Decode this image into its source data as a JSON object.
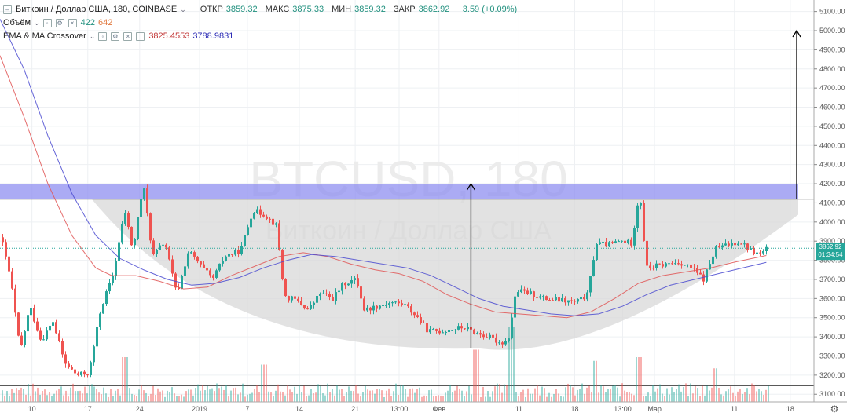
{
  "symbol": {
    "title": "Биткоин / Доллар США, 180, COINBASE",
    "watermark_ticker": "BTCUSD, 180",
    "watermark_name": "Биткоин / Доллар США"
  },
  "ohlc": {
    "open_label": "ОТКР",
    "open": "3859.32",
    "high_label": "МАКС",
    "high": "3875.33",
    "low_label": "МИН",
    "low": "3859.32",
    "close_label": "ЗАКР",
    "close": "3862.92",
    "change": "+3.59 (+0.09%)"
  },
  "volume_legend": {
    "label": "Объём",
    "value_up": "422",
    "value_down": "642"
  },
  "ema_legend": {
    "label": "EMA & MA Crossover",
    "ema_value": "3825.4553",
    "ma_value": "3788.9831"
  },
  "price_badge": {
    "price": "3862.92",
    "countdown": "01:34:54"
  },
  "colors": {
    "up": "#26a69a",
    "down": "#ef5350",
    "ema": "#e05555",
    "ma": "#4a4ad0",
    "resistance_band": "#8f8ff0",
    "cup_fill": "#d8d8d8",
    "badge": "#26a69a",
    "grid": "#eef0f3"
  },
  "chart_data": {
    "type": "candlestick",
    "symbol": "BTCUSD",
    "interval": "180",
    "y_ticks": [
      3100,
      3200,
      3300,
      3400,
      3500,
      3600,
      3700,
      3800,
      3900,
      4000,
      4100,
      4200,
      4300,
      4400,
      4500,
      4600,
      4700,
      4800,
      4900,
      5000,
      5100
    ],
    "ylim": [
      3060,
      5160
    ],
    "x_ticks": [
      {
        "label": "10",
        "pos": 0.04
      },
      {
        "label": "17",
        "pos": 0.11
      },
      {
        "label": "24",
        "pos": 0.175
      },
      {
        "label": "2019",
        "pos": 0.25
      },
      {
        "label": "7",
        "pos": 0.31
      },
      {
        "label": "14",
        "pos": 0.375
      },
      {
        "label": "21",
        "pos": 0.445
      },
      {
        "label": "13:00",
        "pos": 0.5
      },
      {
        "label": "Фев",
        "pos": 0.55
      },
      {
        "label": "11",
        "pos": 0.65
      },
      {
        "label": "18",
        "pos": 0.72
      },
      {
        "label": "13:00",
        "pos": 0.78
      },
      {
        "label": "Мар",
        "pos": 0.82
      },
      {
        "label": "11",
        "pos": 0.92
      },
      {
        "label": "18",
        "pos": 0.99
      }
    ],
    "price_path": [
      [
        0.0,
        3920
      ],
      [
        0.012,
        3700
      ],
      [
        0.024,
        3320
      ],
      [
        0.036,
        3560
      ],
      [
        0.05,
        3380
      ],
      [
        0.065,
        3480
      ],
      [
        0.08,
        3260
      ],
      [
        0.095,
        3200
      ],
      [
        0.11,
        3210
      ],
      [
        0.125,
        3550
      ],
      [
        0.14,
        3720
      ],
      [
        0.155,
        4060
      ],
      [
        0.165,
        3850
      ],
      [
        0.178,
        4200
      ],
      [
        0.19,
        3820
      ],
      [
        0.205,
        3900
      ],
      [
        0.22,
        3620
      ],
      [
        0.235,
        3850
      ],
      [
        0.25,
        3770
      ],
      [
        0.265,
        3700
      ],
      [
        0.28,
        3820
      ],
      [
        0.3,
        3850
      ],
      [
        0.315,
        4060
      ],
      [
        0.33,
        4040
      ],
      [
        0.345,
        3980
      ],
      [
        0.355,
        3610
      ],
      [
        0.37,
        3590
      ],
      [
        0.385,
        3540
      ],
      [
        0.4,
        3630
      ],
      [
        0.415,
        3600
      ],
      [
        0.43,
        3680
      ],
      [
        0.445,
        3700
      ],
      [
        0.455,
        3540
      ],
      [
        0.47,
        3560
      ],
      [
        0.49,
        3580
      ],
      [
        0.505,
        3570
      ],
      [
        0.52,
        3510
      ],
      [
        0.535,
        3430
      ],
      [
        0.55,
        3430
      ],
      [
        0.565,
        3440
      ],
      [
        0.58,
        3450
      ],
      [
        0.595,
        3420
      ],
      [
        0.61,
        3400
      ],
      [
        0.625,
        3370
      ],
      [
        0.635,
        3380
      ],
      [
        0.645,
        3640
      ],
      [
        0.66,
        3630
      ],
      [
        0.68,
        3600
      ],
      [
        0.7,
        3590
      ],
      [
        0.72,
        3580
      ],
      [
        0.735,
        3620
      ],
      [
        0.745,
        3890
      ],
      [
        0.76,
        3880
      ],
      [
        0.775,
        3900
      ],
      [
        0.79,
        3890
      ],
      [
        0.8,
        4170
      ],
      [
        0.808,
        3760
      ],
      [
        0.82,
        3770
      ],
      [
        0.835,
        3780
      ],
      [
        0.85,
        3790
      ],
      [
        0.865,
        3760
      ],
      [
        0.88,
        3700
      ],
      [
        0.895,
        3860
      ],
      [
        0.91,
        3880
      ],
      [
        0.925,
        3900
      ],
      [
        0.94,
        3850
      ],
      [
        0.95,
        3830
      ],
      [
        0.96,
        3862
      ]
    ],
    "ema_path": [
      [
        0.0,
        4870
      ],
      [
        0.03,
        4550
      ],
      [
        0.06,
        4200
      ],
      [
        0.09,
        3930
      ],
      [
        0.12,
        3760
      ],
      [
        0.14,
        3720
      ],
      [
        0.17,
        3720
      ],
      [
        0.2,
        3690
      ],
      [
        0.23,
        3650
      ],
      [
        0.26,
        3660
      ],
      [
        0.29,
        3720
      ],
      [
        0.32,
        3770
      ],
      [
        0.35,
        3820
      ],
      [
        0.38,
        3840
      ],
      [
        0.41,
        3820
      ],
      [
        0.44,
        3780
      ],
      [
        0.47,
        3750
      ],
      [
        0.5,
        3730
      ],
      [
        0.53,
        3690
      ],
      [
        0.56,
        3620
      ],
      [
        0.59,
        3570
      ],
      [
        0.62,
        3530
      ],
      [
        0.65,
        3520
      ],
      [
        0.68,
        3510
      ],
      [
        0.71,
        3500
      ],
      [
        0.74,
        3530
      ],
      [
        0.77,
        3600
      ],
      [
        0.8,
        3680
      ],
      [
        0.83,
        3720
      ],
      [
        0.86,
        3740
      ],
      [
        0.89,
        3760
      ],
      [
        0.92,
        3790
      ],
      [
        0.96,
        3825
      ]
    ],
    "ma_path": [
      [
        0.0,
        5060
      ],
      [
        0.03,
        4800
      ],
      [
        0.06,
        4450
      ],
      [
        0.09,
        4150
      ],
      [
        0.12,
        3930
      ],
      [
        0.15,
        3810
      ],
      [
        0.18,
        3750
      ],
      [
        0.21,
        3700
      ],
      [
        0.24,
        3670
      ],
      [
        0.27,
        3680
      ],
      [
        0.3,
        3710
      ],
      [
        0.33,
        3760
      ],
      [
        0.36,
        3800
      ],
      [
        0.39,
        3830
      ],
      [
        0.42,
        3820
      ],
      [
        0.45,
        3800
      ],
      [
        0.48,
        3780
      ],
      [
        0.51,
        3760
      ],
      [
        0.54,
        3720
      ],
      [
        0.57,
        3660
      ],
      [
        0.6,
        3600
      ],
      [
        0.63,
        3560
      ],
      [
        0.66,
        3540
      ],
      [
        0.69,
        3520
      ],
      [
        0.72,
        3510
      ],
      [
        0.75,
        3520
      ],
      [
        0.78,
        3560
      ],
      [
        0.81,
        3620
      ],
      [
        0.84,
        3670
      ],
      [
        0.87,
        3700
      ],
      [
        0.9,
        3730
      ],
      [
        0.93,
        3760
      ],
      [
        0.96,
        3789
      ]
    ],
    "resistance_band": [
      4120,
      4200
    ],
    "resistance_line": 4120,
    "cup_bottom": 3340,
    "arrows": [
      {
        "x": 0.59,
        "from": 3340,
        "to": 4200
      },
      {
        "x": 1.0,
        "from": 4120,
        "to": 5000
      }
    ],
    "volume": {
      "separator_price": 3145,
      "spikes": [
        [
          0.155,
          0.6
        ],
        [
          0.33,
          0.5
        ],
        [
          0.595,
          0.7
        ],
        [
          0.64,
          1.0
        ],
        [
          0.745,
          0.55
        ],
        [
          0.8,
          0.6
        ],
        [
          0.895,
          0.45
        ]
      ]
    }
  }
}
